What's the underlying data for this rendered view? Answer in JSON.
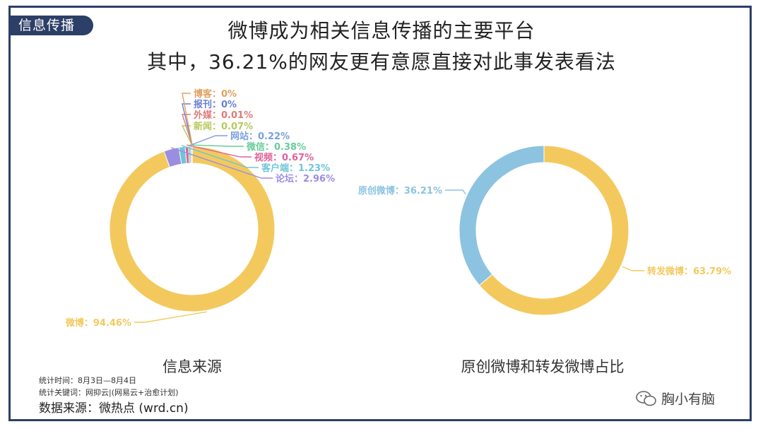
{
  "tag": "信息传播",
  "title_line1": "微博成为相关信息传播的主要平台",
  "title_line2": "其中，36.21%的网友更有意愿直接对此事发表看法",
  "notes": {
    "time": "统计时间：8月3日—8月4日",
    "keywords": "统计关键词：网抑云|(网易云+治愈计划)",
    "source": "数据来源：微热点 (wrd.cn)"
  },
  "watermark": "胸小有脑",
  "chart_data": [
    {
      "type": "pie",
      "donut": true,
      "title": "信息来源",
      "slices": [
        {
          "name": "微博",
          "value": 94.46,
          "label": "微博：94.46%",
          "color": "#f3c95e"
        },
        {
          "name": "论坛",
          "value": 2.96,
          "label": "论坛：2.96%",
          "color": "#9b8ee0"
        },
        {
          "name": "客户端",
          "value": 1.23,
          "label": "客户端：1.23%",
          "color": "#6fc5d8"
        },
        {
          "name": "视频",
          "value": 0.67,
          "label": "视频：0.67%",
          "color": "#e0629b"
        },
        {
          "name": "微信",
          "value": 0.38,
          "label": "微信：0.38%",
          "color": "#66cc99"
        },
        {
          "name": "网站",
          "value": 0.22,
          "label": "网站：0.22%",
          "color": "#7aa0dd"
        },
        {
          "name": "新闻",
          "value": 0.07,
          "label": "新闻：0.07%",
          "color": "#b8c95a"
        },
        {
          "name": "外媒",
          "value": 0.01,
          "label": "外媒：0.01%",
          "color": "#e07a7a"
        },
        {
          "name": "报刊",
          "value": 0,
          "label": "报刊：0%",
          "color": "#6a7fd0"
        },
        {
          "name": "博客",
          "value": 0,
          "label": "博客：0%",
          "color": "#e0a060"
        }
      ]
    },
    {
      "type": "pie",
      "donut": true,
      "title": "原创微博和转发微博占比",
      "slices": [
        {
          "name": "转发微博",
          "value": 63.79,
          "label": "转发微博：63.79%",
          "color": "#f3c95e"
        },
        {
          "name": "原创微博",
          "value": 36.21,
          "label": "原创微博：36.21%",
          "color": "#8cc3e0"
        }
      ]
    }
  ]
}
